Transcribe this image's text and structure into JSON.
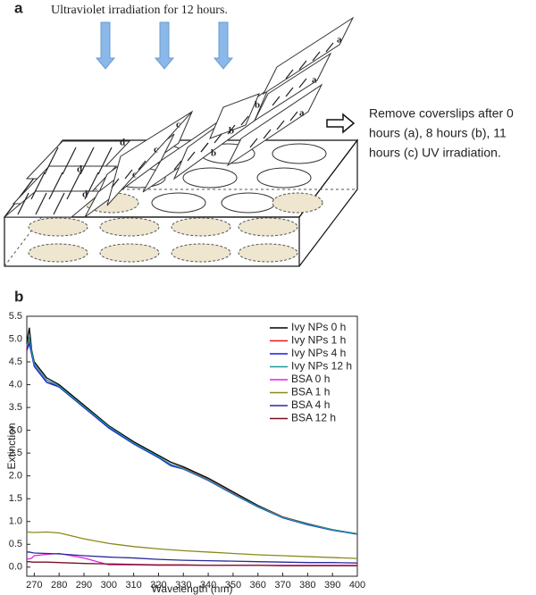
{
  "panel_a": {
    "label": "a",
    "caption": "Ultraviolet irradiation for 12 hours.",
    "note": [
      "Remove coverslips after 0",
      "hours (a), 8 hours (b),  11",
      "hours (c) UV irradiation."
    ],
    "slide_labels": [
      "a",
      "a",
      "a",
      "b",
      "b",
      "b",
      "c",
      "c",
      "c",
      "d",
      "d",
      "d"
    ]
  },
  "chart_data": {
    "type": "line",
    "panel_label": "b",
    "x_label": "Wavelength (nm)",
    "y_label": "Extinction",
    "xlim": [
      267,
      400
    ],
    "ylim": [
      -0.2,
      5.5
    ],
    "xticks": [
      270,
      280,
      290,
      300,
      310,
      320,
      330,
      340,
      350,
      360,
      370,
      380,
      390,
      400
    ],
    "yticks": [
      {
        "value": 0,
        "label": "0.0"
      },
      0.5,
      {
        "value": 1,
        "label": "1.0"
      },
      1.5,
      {
        "value": 2,
        "label": "2.0"
      },
      2.5,
      {
        "value": 3,
        "label": "3.0"
      },
      3.5,
      {
        "value": 4,
        "label": "4.0"
      },
      4.5,
      {
        "value": 5,
        "label": "5.0"
      },
      5.5
    ],
    "legend": "upper right",
    "x": [
      267,
      268,
      269,
      270,
      275,
      280,
      290,
      300,
      310,
      320,
      325,
      330,
      340,
      350,
      360,
      370,
      380,
      390,
      400
    ],
    "series": [
      {
        "name": "Ivy NPs 0 h",
        "color": "#000000",
        "values": [
          4.9,
          5.25,
          4.75,
          4.5,
          4.15,
          4.0,
          3.55,
          3.1,
          2.75,
          2.45,
          2.3,
          2.2,
          1.95,
          1.65,
          1.35,
          1.1,
          0.95,
          0.82,
          0.73
        ]
      },
      {
        "name": "Ivy NPs 1 h",
        "color": "#e8141c",
        "values": [
          4.8,
          5.0,
          4.7,
          4.45,
          4.1,
          3.95,
          3.5,
          3.08,
          2.72,
          2.42,
          2.25,
          2.17,
          1.92,
          1.62,
          1.33,
          1.1,
          0.94,
          0.82,
          0.73
        ]
      },
      {
        "name": "Ivy NPs 4 h",
        "color": "#1a1adb",
        "values": [
          4.75,
          4.9,
          4.65,
          4.4,
          4.05,
          3.95,
          3.5,
          3.05,
          2.7,
          2.4,
          2.22,
          2.15,
          1.9,
          1.6,
          1.32,
          1.08,
          0.93,
          0.81,
          0.72
        ]
      },
      {
        "name": "Ivy NPs 12 h",
        "color": "#1a9a9a",
        "values": [
          4.85,
          5.05,
          4.72,
          4.45,
          4.1,
          3.97,
          3.52,
          3.08,
          2.72,
          2.42,
          2.25,
          2.16,
          1.91,
          1.61,
          1.33,
          1.09,
          0.94,
          0.82,
          0.73
        ]
      },
      {
        "name": "BSA 0 h",
        "color": "#e020e0",
        "values": [
          0.18,
          0.18,
          0.2,
          0.25,
          0.28,
          0.3,
          0.2,
          0.05,
          0.05,
          0.04,
          0.04,
          0.04,
          0.04,
          0.04,
          0.04,
          0.04,
          0.04,
          0.04,
          0.04
        ]
      },
      {
        "name": "BSA 1 h",
        "color": "#8a8a1a",
        "values": [
          0.77,
          0.77,
          0.76,
          0.76,
          0.77,
          0.75,
          0.62,
          0.52,
          0.45,
          0.4,
          0.38,
          0.36,
          0.33,
          0.3,
          0.27,
          0.25,
          0.23,
          0.21,
          0.19
        ]
      },
      {
        "name": "BSA 4 h",
        "color": "#2a2a9a",
        "values": [
          0.33,
          0.33,
          0.32,
          0.31,
          0.3,
          0.29,
          0.25,
          0.22,
          0.2,
          0.17,
          0.16,
          0.15,
          0.14,
          0.13,
          0.12,
          0.11,
          0.1,
          0.1,
          0.09
        ]
      },
      {
        "name": "BSA 12 h",
        "color": "#7a1020",
        "values": [
          0.12,
          0.12,
          0.11,
          0.11,
          0.11,
          0.1,
          0.08,
          0.07,
          0.06,
          0.05,
          0.05,
          0.05,
          0.04,
          0.04,
          0.04,
          0.03,
          0.03,
          0.03,
          0.03
        ]
      }
    ]
  }
}
